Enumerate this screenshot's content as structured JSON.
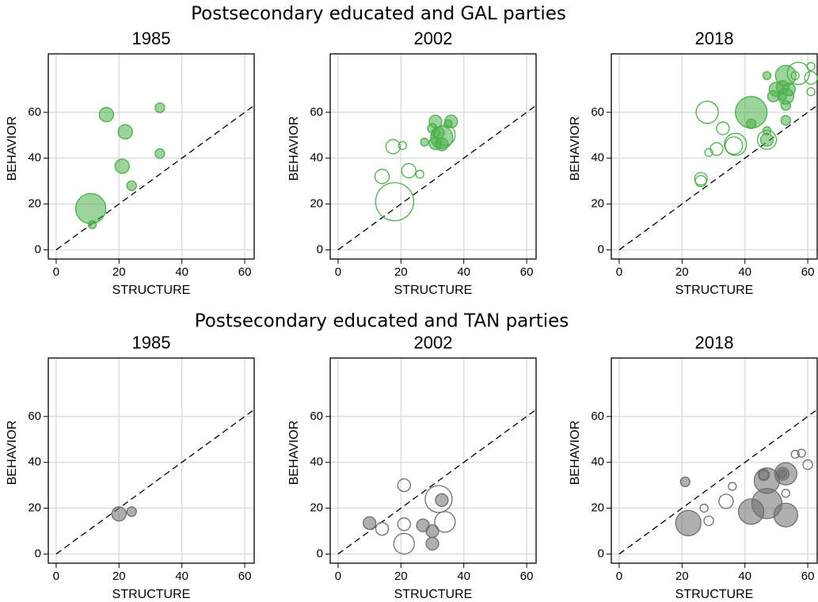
{
  "headings": [
    "Postsecondary educated and GAL parties",
    "Postsecondary educated and TAN parties"
  ],
  "chart_data": [
    {
      "type": "scatter",
      "title": "1985",
      "xlabel": "STRUCTURE",
      "ylabel": "BEHAVIOR",
      "xlim": [
        -2.5,
        63
      ],
      "ylim": [
        -4,
        85.5
      ],
      "xticks": [
        0,
        20,
        40,
        60
      ],
      "yticks": [
        0,
        20,
        40,
        60
      ],
      "grid": true,
      "series": [
        {
          "color": "#4daf4a",
          "filled": true,
          "x": [
            16,
            22,
            33,
            21,
            33,
            24,
            11,
            11.5
          ],
          "values": [
            59,
            51.5,
            62,
            36.5,
            42,
            28,
            18,
            11
          ],
          "sizes": [
            9,
            9,
            6,
            9,
            6,
            6,
            19,
            5
          ]
        }
      ]
    },
    {
      "type": "scatter",
      "title": "2002",
      "xlabel": "STRUCTURE",
      "ylabel": "BEHAVIOR",
      "xlim": [
        -2.5,
        63
      ],
      "ylim": [
        -4,
        85.5
      ],
      "xticks": [
        0,
        20,
        40,
        60
      ],
      "yticks": [
        0,
        20,
        40,
        60
      ],
      "grid": true,
      "series": [
        {
          "color": "#4daf4a",
          "filled": true,
          "x": [
            31,
            36,
            32,
            30,
            33,
            31,
            33,
            27.5,
            35
          ],
          "values": [
            56,
            56,
            51,
            53,
            49,
            46.5,
            46,
            47,
            55
          ],
          "sizes": [
            8,
            8,
            7,
            6,
            14,
            8,
            8,
            5,
            5
          ]
        },
        {
          "color": "#4daf4a",
          "filled": false,
          "x": [
            17.5,
            20.5,
            14,
            22.5,
            26,
            18,
            34,
            31
          ],
          "values": [
            45,
            45.5,
            32,
            34.5,
            33,
            21,
            50,
            51
          ],
          "sizes": [
            9,
            5,
            9,
            9,
            5,
            24,
            13,
            5
          ]
        }
      ]
    },
    {
      "type": "scatter",
      "title": "2018",
      "xlabel": "STRUCTURE",
      "ylabel": "BEHAVIOR",
      "xlim": [
        -2.5,
        63
      ],
      "ylim": [
        -4,
        85.5
      ],
      "xticks": [
        0,
        20,
        40,
        60
      ],
      "yticks": [
        0,
        20,
        40,
        60
      ],
      "grid": true,
      "series": [
        {
          "color": "#4daf4a",
          "filled": true,
          "x": [
            42,
            53,
            50,
            52,
            54,
            53,
            49,
            53,
            53,
            42,
            47,
            47,
            47,
            52
          ],
          "values": [
            60,
            76,
            70,
            71,
            70,
            67,
            67,
            63,
            56.5,
            55,
            76,
            52,
            48,
            67
          ],
          "sizes": [
            20,
            13,
            9,
            8,
            8,
            10,
            7,
            6,
            6,
            6,
            5,
            5,
            8,
            5
          ]
        },
        {
          "color": "#4daf4a",
          "filled": false,
          "x": [
            28,
            33,
            37,
            36.5,
            31,
            28.5,
            26,
            26,
            47,
            57,
            61,
            61,
            61,
            56
          ],
          "values": [
            60,
            53,
            46,
            45.5,
            44,
            42.5,
            31,
            30,
            48,
            77,
            75,
            80,
            69,
            76
          ],
          "sizes": [
            14,
            8,
            14,
            11,
            8,
            5,
            8,
            7,
            12,
            14,
            8,
            5,
            5,
            5
          ]
        }
      ]
    },
    {
      "type": "scatter",
      "title": "1985",
      "xlabel": "STRUCTURE",
      "ylabel": "BEHAVIOR",
      "xlim": [
        -2.5,
        63
      ],
      "ylim": [
        -4,
        85.5
      ],
      "xticks": [
        0,
        20,
        40,
        60
      ],
      "yticks": [
        0,
        20,
        40,
        60
      ],
      "grid": true,
      "series": [
        {
          "color": "#6e6e6e",
          "filled": true,
          "x": [
            20,
            24
          ],
          "values": [
            17.5,
            18.5
          ],
          "sizes": [
            9,
            6
          ]
        }
      ]
    },
    {
      "type": "scatter",
      "title": "2002",
      "xlabel": "STRUCTURE",
      "ylabel": "BEHAVIOR",
      "xlim": [
        -2.5,
        63
      ],
      "ylim": [
        -4,
        85.5
      ],
      "xticks": [
        0,
        20,
        40,
        60
      ],
      "yticks": [
        0,
        20,
        40,
        60
      ],
      "grid": true,
      "series": [
        {
          "color": "#6e6e6e",
          "filled": true,
          "x": [
            10,
            27,
            30,
            30,
            33
          ],
          "values": [
            13.5,
            12.5,
            10,
            4.5,
            23.5
          ],
          "sizes": [
            8,
            8,
            8,
            8,
            8
          ]
        },
        {
          "color": "#6e6e6e",
          "filled": false,
          "x": [
            21,
            14,
            21,
            21,
            32,
            34
          ],
          "values": [
            30,
            11,
            13,
            4.5,
            24,
            14
          ],
          "sizes": [
            8,
            8,
            8,
            13,
            17,
            13
          ]
        }
      ]
    },
    {
      "type": "scatter",
      "title": "2018",
      "xlabel": "STRUCTURE",
      "ylabel": "BEHAVIOR",
      "xlim": [
        -2.5,
        63
      ],
      "ylim": [
        -4,
        85.5
      ],
      "xticks": [
        0,
        20,
        40,
        60
      ],
      "yticks": [
        0,
        20,
        40,
        60
      ],
      "grid": true,
      "series": [
        {
          "color": "#6e6e6e",
          "filled": true,
          "x": [
            21,
            22,
            42,
            47,
            47,
            53,
            53,
            52,
            46,
            52
          ],
          "values": [
            31.5,
            13.5,
            18.5,
            22,
            32,
            35,
            17,
            35,
            34.5,
            35
          ],
          "sizes": [
            6,
            16,
            16,
            19,
            16,
            14,
            15,
            8,
            6,
            5
          ]
        },
        {
          "color": "#6e6e6e",
          "filled": false,
          "x": [
            27,
            28.5,
            34,
            36,
            46,
            53,
            56,
            58,
            60
          ],
          "values": [
            20,
            14.5,
            23,
            29.5,
            34.5,
            26.5,
            43.5,
            44,
            39
          ],
          "sizes": [
            5,
            6,
            9,
            5,
            7,
            5,
            5,
            5,
            6
          ]
        }
      ]
    }
  ]
}
